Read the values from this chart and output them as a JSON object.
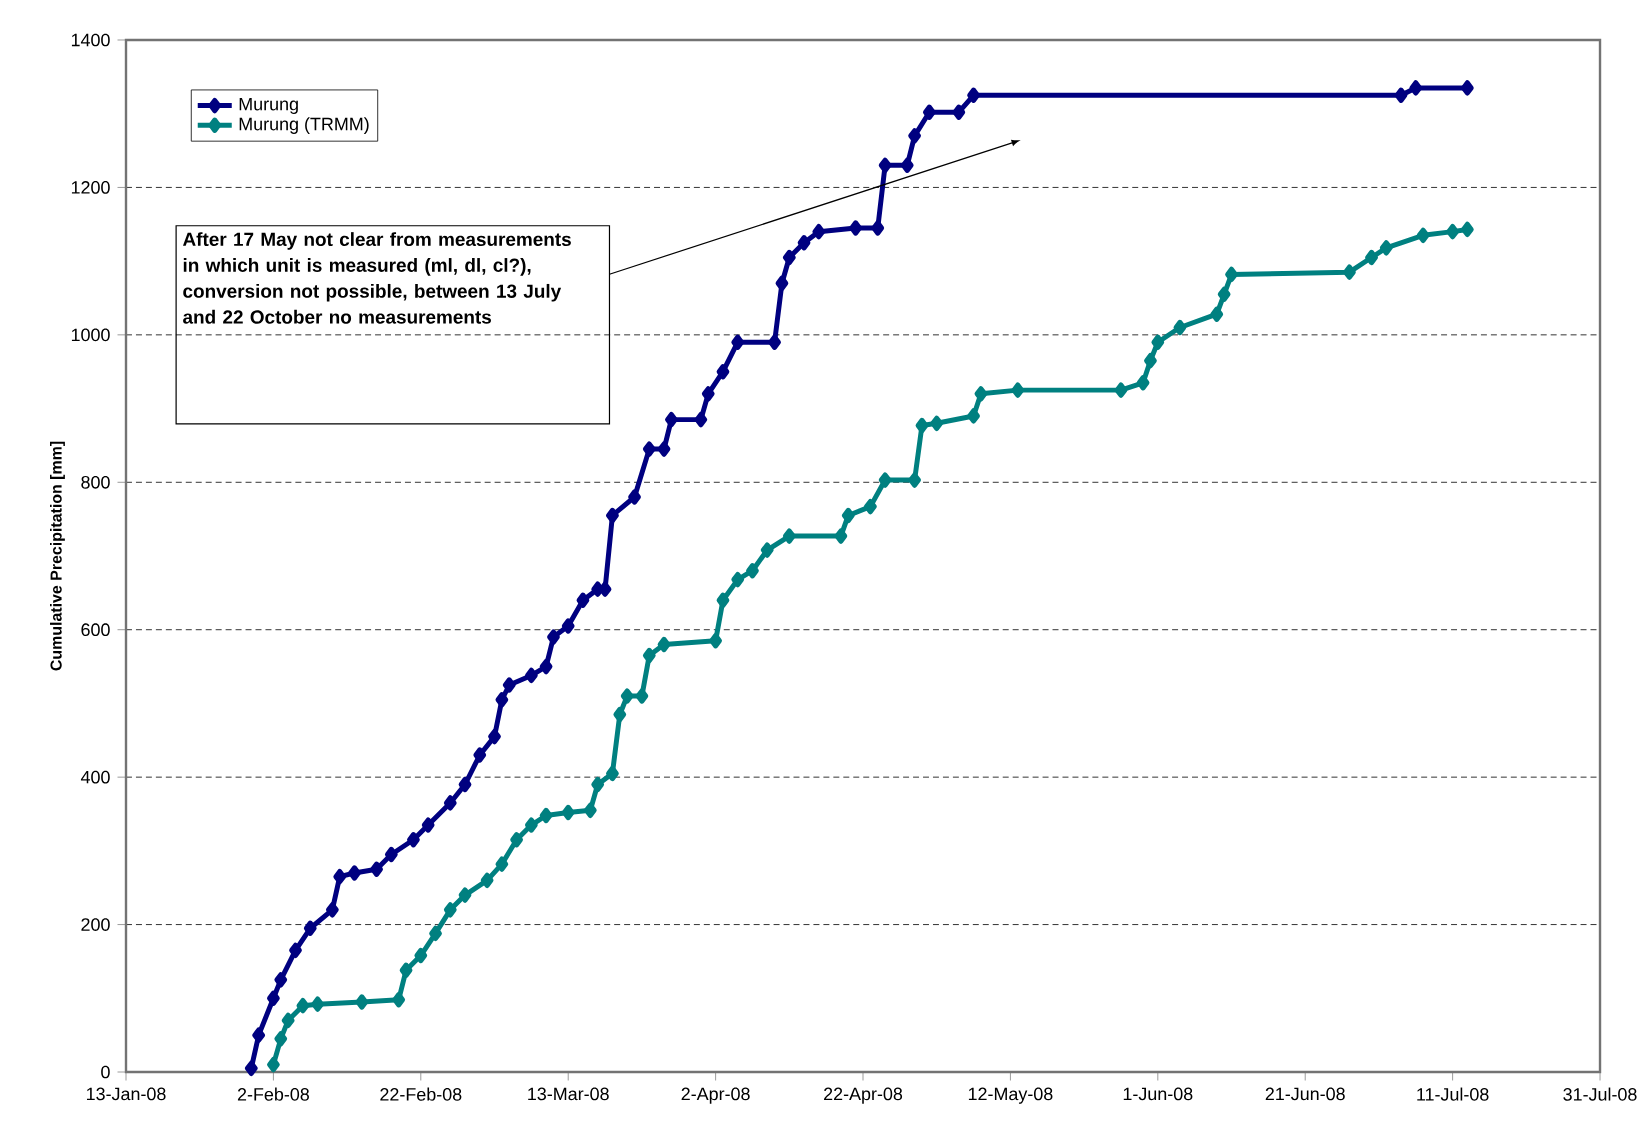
{
  "chart_data": {
    "type": "line",
    "ylabel": "Cumulative Precipitation [mm]",
    "xlim": [
      "2008-01-13",
      "2008-07-31"
    ],
    "xticks": [
      {
        "value": "2008-01-13",
        "label": "13-Jan-08"
      },
      {
        "value": "2008-02-02",
        "label": "2-Feb-08"
      },
      {
        "value": "2008-02-22",
        "label": "22-Feb-08"
      },
      {
        "value": "2008-03-13",
        "label": "13-Mar-08"
      },
      {
        "value": "2008-04-02",
        "label": "2-Apr-08"
      },
      {
        "value": "2008-04-22",
        "label": "22-Apr-08"
      },
      {
        "value": "2008-05-12",
        "label": "12-May-08"
      },
      {
        "value": "2008-06-01",
        "label": "1-Jun-08"
      },
      {
        "value": "2008-06-21",
        "label": "21-Jun-08"
      },
      {
        "value": "2008-07-11",
        "label": "11-Jul-08"
      },
      {
        "value": "2008-07-31",
        "label": "31-Jul-08"
      }
    ],
    "ylim": [
      0,
      1400
    ],
    "yticks": [
      0,
      200,
      400,
      600,
      800,
      1000,
      1200,
      1400
    ],
    "grid": "y",
    "legend": "top left",
    "marker": "diamond",
    "line_style": "solid",
    "series": [
      {
        "name": "Murung",
        "color": "#000080",
        "x": [
          "2008-01-30",
          "2008-01-31",
          "2008-02-02",
          "2008-02-03",
          "2008-02-05",
          "2008-02-07",
          "2008-02-10",
          "2008-02-11",
          "2008-02-13",
          "2008-02-16",
          "2008-02-18",
          "2008-02-21",
          "2008-02-23",
          "2008-02-26",
          "2008-02-28",
          "2008-03-01",
          "2008-03-03",
          "2008-03-04",
          "2008-03-05",
          "2008-03-08",
          "2008-03-10",
          "2008-03-11",
          "2008-03-13",
          "2008-03-15",
          "2008-03-17",
          "2008-03-18",
          "2008-03-19",
          "2008-03-22",
          "2008-03-24",
          "2008-03-26",
          "2008-03-27",
          "2008-03-31",
          "2008-04-01",
          "2008-04-03",
          "2008-04-05",
          "2008-04-10",
          "2008-04-11",
          "2008-04-12",
          "2008-04-14",
          "2008-04-16",
          "2008-04-21",
          "2008-04-24",
          "2008-04-25",
          "2008-04-28",
          "2008-04-29",
          "2008-05-01",
          "2008-05-05",
          "2008-05-07",
          "2008-07-04",
          "2008-07-06",
          "2008-07-13"
        ],
        "values": [
          5,
          50,
          100,
          125,
          165,
          195,
          220,
          265,
          270,
          275,
          295,
          315,
          335,
          365,
          390,
          430,
          455,
          505,
          525,
          538,
          550,
          590,
          605,
          640,
          655,
          655,
          755,
          780,
          845,
          845,
          885,
          885,
          920,
          950,
          990,
          990,
          1070,
          1105,
          1125,
          1140,
          1145,
          1145,
          1230,
          1230,
          1270,
          1302,
          1302,
          1325,
          1325,
          1335,
          1335
        ]
      },
      {
        "name": "Murung (TRMM)",
        "color": "#008080",
        "x": [
          "2008-02-02",
          "2008-02-03",
          "2008-02-04",
          "2008-02-06",
          "2008-02-08",
          "2008-02-14",
          "2008-02-19",
          "2008-02-20",
          "2008-02-22",
          "2008-02-24",
          "2008-02-26",
          "2008-02-28",
          "2008-03-02",
          "2008-03-04",
          "2008-03-06",
          "2008-03-08",
          "2008-03-10",
          "2008-03-13",
          "2008-03-16",
          "2008-03-17",
          "2008-03-19",
          "2008-03-20",
          "2008-03-21",
          "2008-03-23",
          "2008-03-24",
          "2008-03-26",
          "2008-04-02",
          "2008-04-03",
          "2008-04-05",
          "2008-04-07",
          "2008-04-09",
          "2008-04-12",
          "2008-04-19",
          "2008-04-20",
          "2008-04-23",
          "2008-04-25",
          "2008-04-29",
          "2008-04-30",
          "2008-05-02",
          "2008-05-07",
          "2008-05-08",
          "2008-05-13",
          "2008-05-27",
          "2008-05-30",
          "2008-05-31",
          "2008-06-01",
          "2008-06-04",
          "2008-06-09",
          "2008-06-10",
          "2008-06-11",
          "2008-06-27",
          "2008-06-30",
          "2008-07-02",
          "2008-07-07",
          "2008-07-11",
          "2008-07-13"
        ],
        "values": [
          10,
          45,
          70,
          90,
          92,
          95,
          98,
          138,
          158,
          188,
          220,
          240,
          260,
          282,
          315,
          335,
          348,
          352,
          355,
          390,
          405,
          485,
          510,
          510,
          565,
          580,
          585,
          640,
          668,
          680,
          708,
          727,
          727,
          755,
          767,
          803,
          803,
          877,
          880,
          890,
          920,
          925,
          925,
          935,
          965,
          990,
          1010,
          1028,
          1055,
          1082,
          1085,
          1105,
          1118,
          1135,
          1140,
          1143
        ]
      }
    ],
    "annotations": [
      "After 17 May not clear from measurements in which unit is measured (ml, dl, cl?), conversion not possible, between 13 July and 22 October no measurements"
    ]
  }
}
